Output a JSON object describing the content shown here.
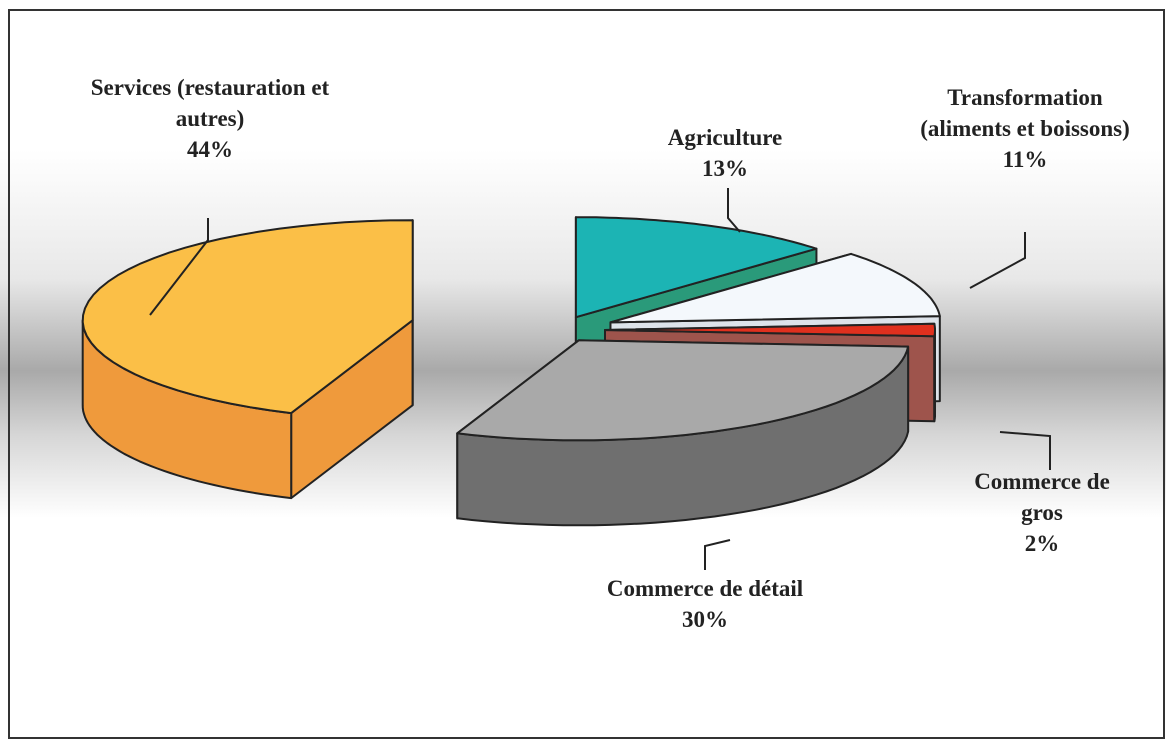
{
  "chart_data": {
    "type": "pie3d",
    "categories": [
      "Services (restauration et autres)",
      "Agriculture",
      "Transformation (aliments et boissons)",
      "Commerce de gros",
      "Commerce de détail"
    ],
    "values": [
      44,
      13,
      11,
      2,
      30
    ],
    "value_labels": [
      "44%",
      "13%",
      "11%",
      "2%",
      "30%"
    ],
    "colors": [
      "#fbbf47",
      "#1cb4b4",
      "#f4f8fc",
      "#e0301e",
      "#a9a9a9"
    ],
    "side_colors": [
      "#ef9a3c",
      "#2a9a7a",
      "#dde3ea",
      "#9e544c",
      "#6f6f6f"
    ]
  }
}
